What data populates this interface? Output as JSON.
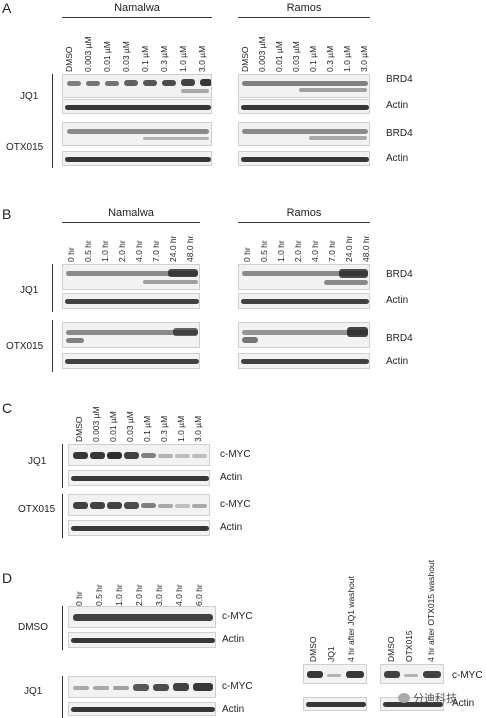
{
  "panels": {
    "A": {
      "letter": "A",
      "cells": [
        "Namalwa",
        "Ramos"
      ],
      "lanes": [
        "DMSO",
        "0.003 µM",
        "0.01 µM",
        "0.03 µM",
        "0.1 µM",
        "0.3 µM",
        "1.0 µM",
        "3.0 µM"
      ],
      "rows": [
        "JQ1",
        "OTX015"
      ],
      "blots": [
        "BRD4",
        "Actin"
      ]
    },
    "B": {
      "letter": "B",
      "cells": [
        "Namalwa",
        "Ramos"
      ],
      "lanes": [
        "0 hr",
        "0.5 hr",
        "1.0 hr",
        "2.0 hr",
        "4.0 hr",
        "7.0 hr",
        "24.0 hr",
        "48.0 hr"
      ],
      "rows": [
        "JQ1",
        "OTX015"
      ],
      "blots": [
        "BRD4",
        "Actin"
      ]
    },
    "C": {
      "letter": "C",
      "lanes": [
        "DMSO",
        "0.003 µM",
        "0.01 µM",
        "0.03 µM",
        "0.1 µM",
        "0.3 µM",
        "1.0 µM",
        "3.0 µM"
      ],
      "rows": [
        "JQ1",
        "OTX015"
      ],
      "blots": [
        "c-MYC",
        "Actin"
      ]
    },
    "D": {
      "letter": "D",
      "lanes": [
        "0 hr",
        "0.5 hr",
        "1.0 hr",
        "2.0 hr",
        "3.0 hr",
        "4.0 hr",
        "6.0 hr"
      ],
      "rows": [
        "DMSO",
        "JQ1"
      ],
      "blots": [
        "c-MYC",
        "Actin"
      ],
      "washout_left_lanes": [
        "DMSO",
        "JQ1",
        "4 hr after JQ1 washout"
      ],
      "washout_right_lanes": [
        "DMSO",
        "OTX015",
        "4 hr after OTX015 washout"
      ],
      "washout_blots": [
        "c-MYC",
        "Actin"
      ]
    }
  },
  "watermark": "分迪科技"
}
